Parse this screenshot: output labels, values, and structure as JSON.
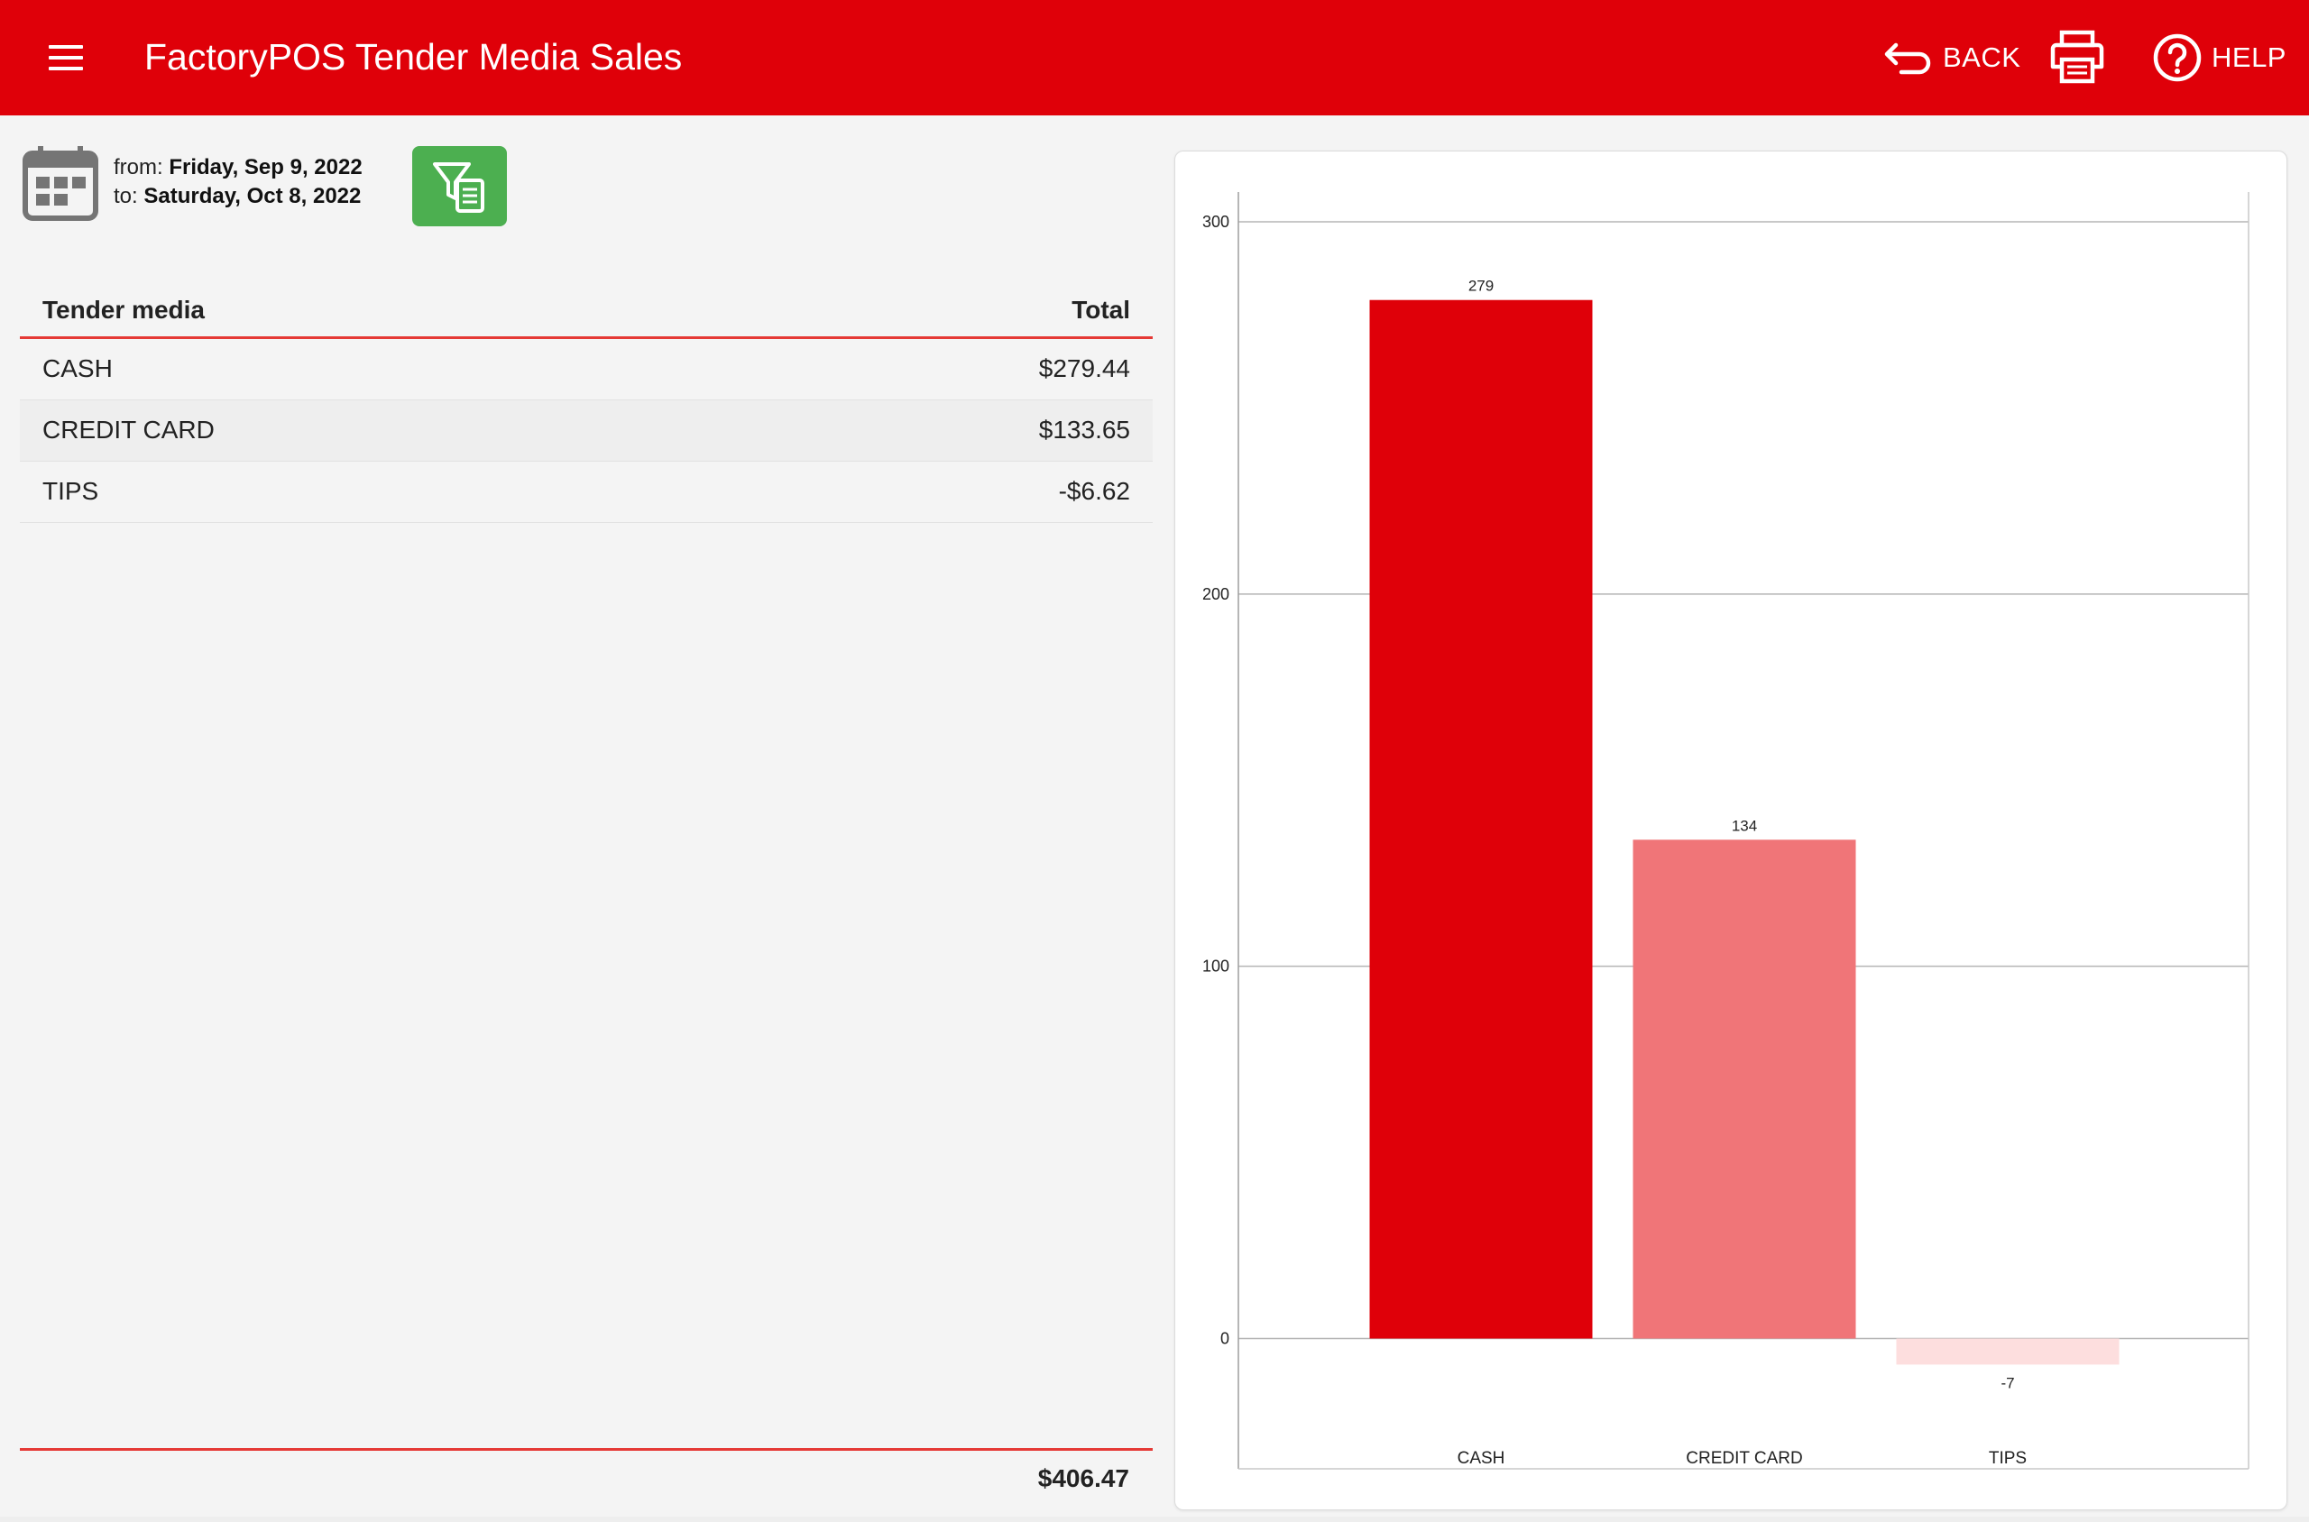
{
  "header": {
    "title": "FactoryPOS Tender Media Sales",
    "back_label": "BACK",
    "help_label": "HELP",
    "icons": [
      "menu-icon",
      "back-arrow-icon",
      "printer-icon",
      "help-circle-icon"
    ],
    "background_color": "#df0009"
  },
  "date_range": {
    "from_label": "from:",
    "from_value": "Friday, Sep 9, 2022",
    "to_label": "to:",
    "to_value": "Saturday, Oct 8, 2022",
    "icon": "calendar-icon"
  },
  "filter_button": {
    "icon": "filter-report-icon",
    "color": "#4caf50"
  },
  "table": {
    "headers": {
      "tender": "Tender media",
      "total": "Total"
    },
    "rows": [
      {
        "tender": "CASH",
        "total": "$279.44"
      },
      {
        "tender": "CREDIT CARD",
        "total": "$133.65"
      },
      {
        "tender": "TIPS",
        "total": "-$6.62"
      }
    ],
    "grand_total": "$406.47",
    "accent_color": "#e53935"
  },
  "chart_data": {
    "type": "bar",
    "categories": [
      "CASH",
      "CREDIT CARD",
      "TIPS"
    ],
    "values": [
      279,
      134,
      -7
    ],
    "value_labels": [
      "279",
      "134",
      "-7"
    ],
    "colors": [
      "#df0009",
      "#f07578",
      "#fddede"
    ],
    "ylim": [
      -35,
      308
    ],
    "yticks": [
      0,
      100,
      200,
      300
    ],
    "grid": true,
    "legend": "none",
    "title": "",
    "xlabel": "",
    "ylabel": ""
  }
}
